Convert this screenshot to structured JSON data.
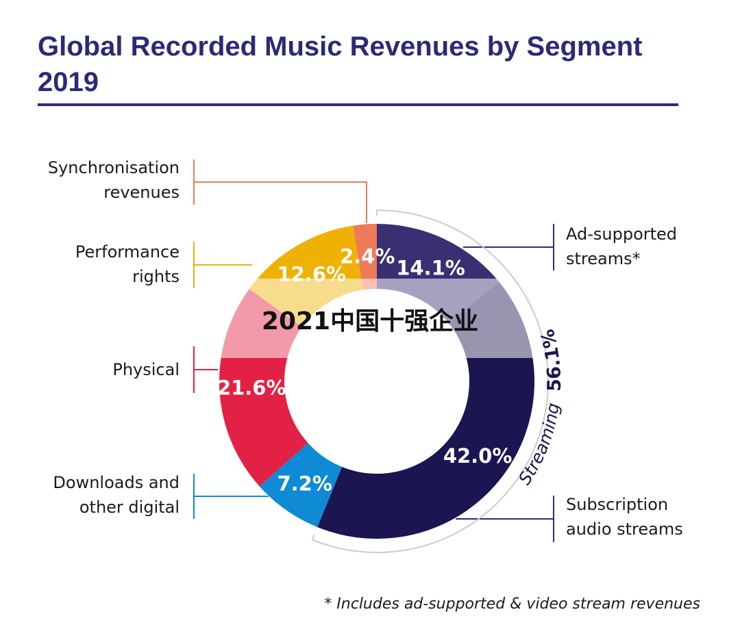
{
  "chart_data": {
    "type": "pie",
    "title": "Global Recorded Music Revenues by Segment 2019",
    "categories": [
      "Ad-supported streams*",
      "Subscription audio streams",
      "Downloads and other digital",
      "Physical",
      "Performance rights",
      "Synchronisation revenues"
    ],
    "values": [
      14.1,
      42.0,
      7.2,
      21.6,
      12.6,
      2.4
    ],
    "value_labels": [
      "14.1%",
      "42.0%",
      "7.2%",
      "21.6%",
      "12.6%",
      "2.4%"
    ],
    "colors": [
      "#3a2f73",
      "#1b1551",
      "#0f8ad4",
      "#e32144",
      "#efb104",
      "#ef7a57"
    ],
    "annotations": {
      "group_label": "Streaming",
      "group_value": "56.1%",
      "footnote": "* Includes ad-supported & video stream revenues",
      "watermark": "2021中国十强企业"
    }
  },
  "labels": {
    "sync": "Synchronisation\nrevenues",
    "performance": "Performance\nrights",
    "physical": "Physical",
    "downloads": "Downloads and\nother digital",
    "ad": "Ad-supported\nstreams*",
    "subscription": "Subscription\naudio streams"
  }
}
